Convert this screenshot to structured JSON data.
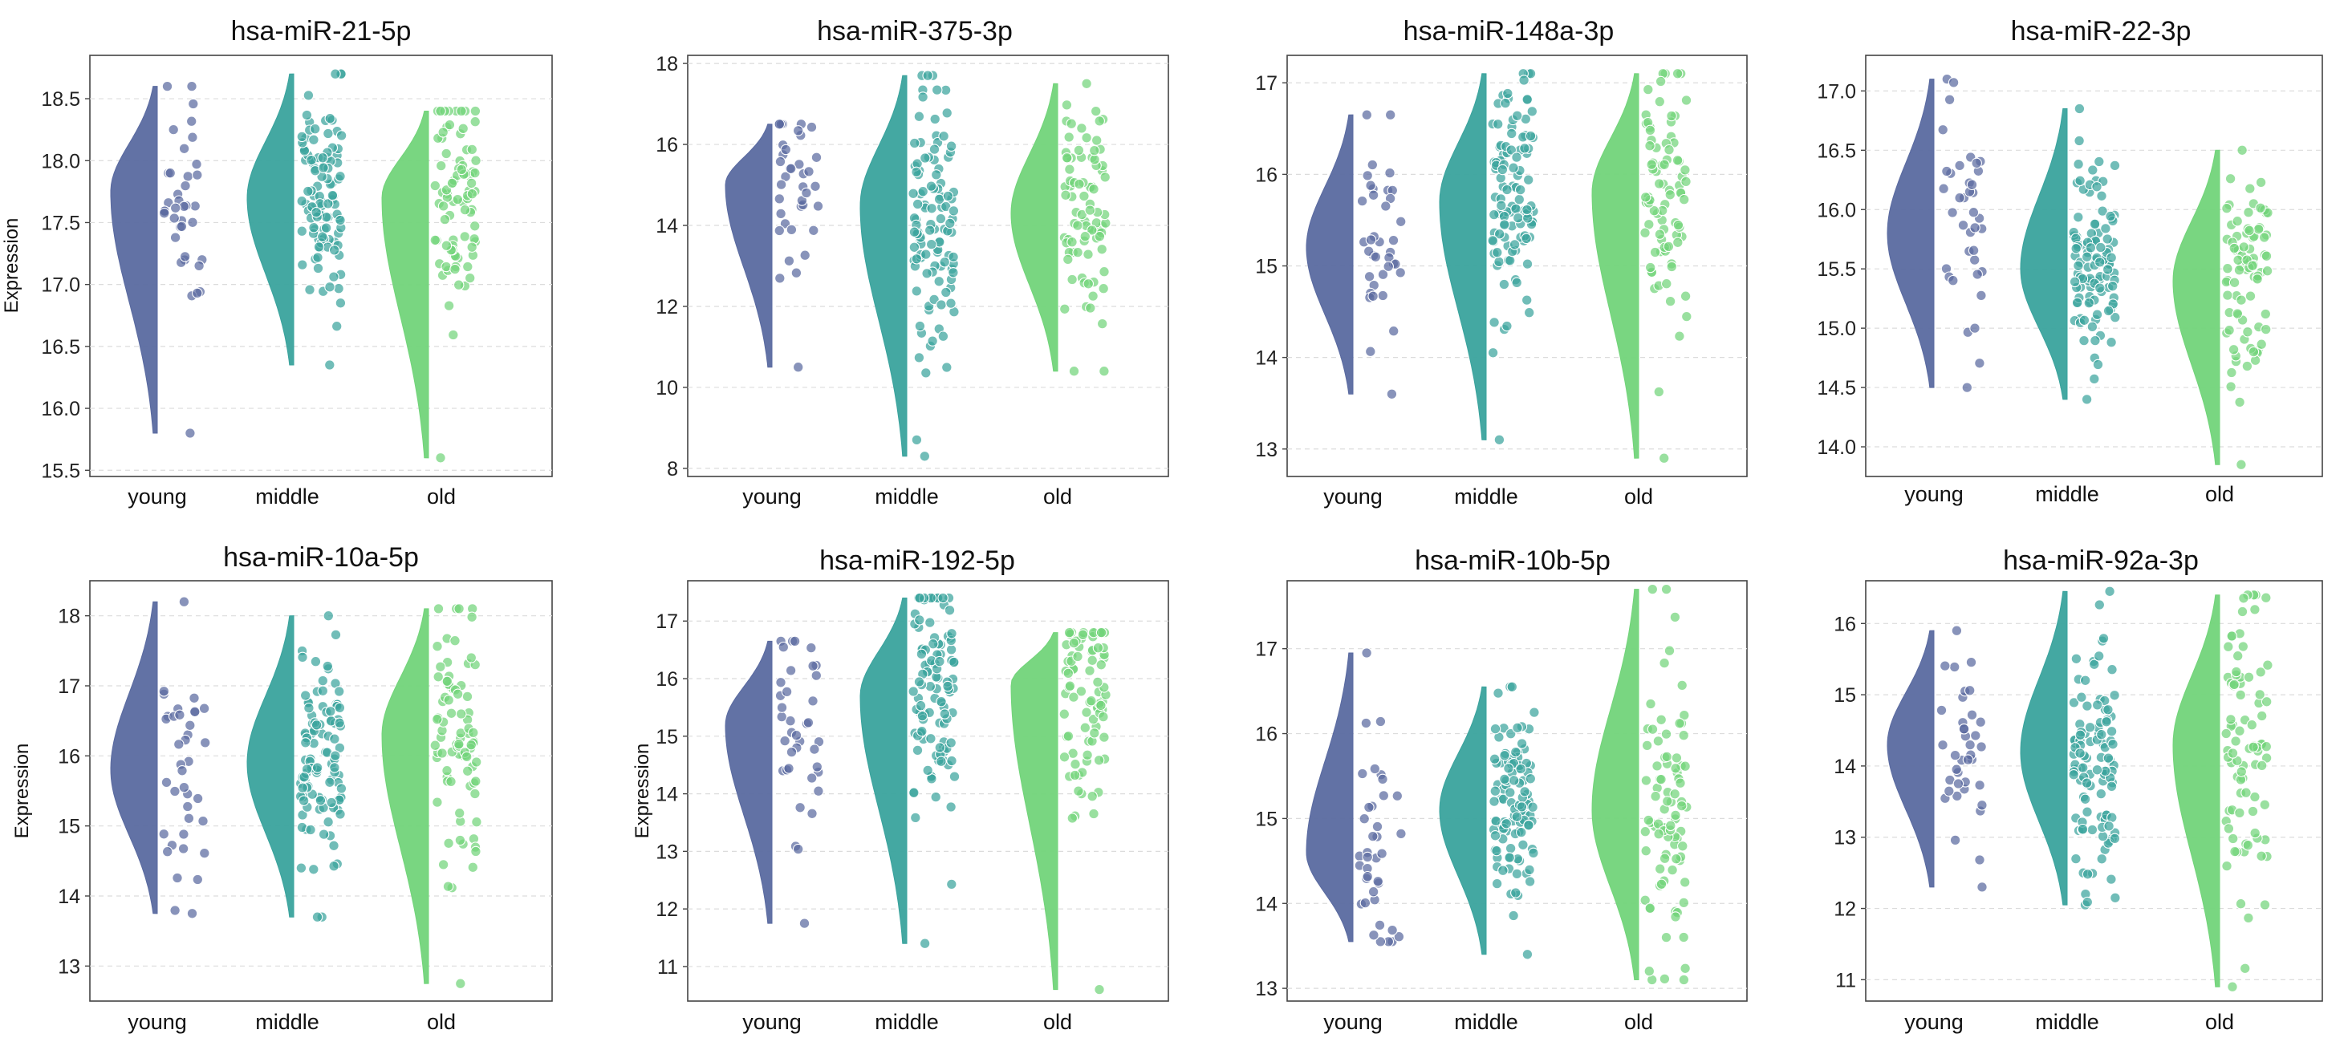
{
  "chart_data": {
    "type": "raincloud",
    "ylabel": "Expression",
    "categories": [
      "young",
      "middle",
      "old"
    ],
    "colors": {
      "young": "#5a6aa0",
      "middle": "#3aa39d",
      "old": "#72d47a"
    },
    "panels": [
      {
        "title": "hsa-miR-21-5p",
        "ylim": [
          15.45,
          18.85
        ],
        "yticks": [
          "15.5",
          "16.0",
          "16.5",
          "17.0",
          "17.5",
          "18.0",
          "18.5"
        ],
        "ylabel_shown": true,
        "groups": [
          {
            "min": 15.8,
            "max": 18.6,
            "mode": 17.75,
            "n": 38,
            "range": [
              15.8,
              18.6
            ]
          },
          {
            "min": 16.35,
            "max": 18.7,
            "mode": 17.7,
            "n": 110,
            "range": [
              16.35,
              18.7
            ]
          },
          {
            "min": 15.6,
            "max": 18.4,
            "mode": 17.7,
            "n": 85,
            "range": [
              15.6,
              18.4
            ]
          }
        ]
      },
      {
        "title": "hsa-miR-375-3p",
        "ylim": [
          7.8,
          18.2
        ],
        "yticks": [
          "8",
          "10",
          "12",
          "14",
          "16",
          "18"
        ],
        "ylabel_shown": false,
        "groups": [
          {
            "min": 10.5,
            "max": 16.5,
            "mode": 15.0,
            "n": 38,
            "range": [
              10.5,
              16.5
            ]
          },
          {
            "min": 8.3,
            "max": 17.7,
            "mode": 14.5,
            "n": 110,
            "range": [
              8.3,
              17.7
            ]
          },
          {
            "min": 10.4,
            "max": 17.5,
            "mode": 14.3,
            "n": 85,
            "range": [
              10.4,
              17.5
            ]
          }
        ]
      },
      {
        "title": "hsa-miR-148a-3p",
        "ylim": [
          12.7,
          17.3
        ],
        "yticks": [
          "13",
          "14",
          "15",
          "16",
          "17"
        ],
        "ylabel_shown": false,
        "groups": [
          {
            "min": 13.6,
            "max": 16.65,
            "mode": 15.2,
            "n": 38,
            "range": [
              13.6,
              16.65
            ]
          },
          {
            "min": 13.1,
            "max": 17.1,
            "mode": 15.7,
            "n": 110,
            "range": [
              13.1,
              17.1
            ]
          },
          {
            "min": 12.9,
            "max": 17.1,
            "mode": 15.8,
            "n": 85,
            "range": [
              12.9,
              17.1
            ]
          }
        ]
      },
      {
        "title": "hsa-miR-22-3p",
        "ylim": [
          13.75,
          17.3
        ],
        "yticks": [
          "14.0",
          "14.5",
          "15.0",
          "15.5",
          "16.0",
          "16.5",
          "17.0"
        ],
        "ylabel_shown": false,
        "groups": [
          {
            "min": 14.5,
            "max": 17.1,
            "mode": 15.8,
            "n": 38,
            "range": [
              14.5,
              17.1
            ]
          },
          {
            "min": 14.4,
            "max": 16.85,
            "mode": 15.5,
            "n": 110,
            "range": [
              14.4,
              16.85
            ]
          },
          {
            "min": 13.85,
            "max": 16.5,
            "mode": 15.4,
            "n": 85,
            "range": [
              13.85,
              16.5
            ]
          }
        ]
      },
      {
        "title": "hsa-miR-10a-5p",
        "ylim": [
          12.5,
          18.5
        ],
        "yticks": [
          "13",
          "14",
          "15",
          "16",
          "17",
          "18"
        ],
        "ylabel_shown": true,
        "groups": [
          {
            "min": 13.75,
            "max": 18.2,
            "mode": 15.8,
            "n": 38,
            "range": [
              13.75,
              18.2
            ]
          },
          {
            "min": 13.7,
            "max": 18.0,
            "mode": 15.9,
            "n": 110,
            "range": [
              13.7,
              18.0
            ]
          },
          {
            "min": 12.75,
            "max": 18.1,
            "mode": 16.3,
            "n": 85,
            "range": [
              12.75,
              18.1
            ]
          }
        ]
      },
      {
        "title": "hsa-miR-192-5p",
        "ylim": [
          10.4,
          17.7
        ],
        "yticks": [
          "11",
          "12",
          "13",
          "14",
          "15",
          "16",
          "17"
        ],
        "ylabel_shown": true,
        "groups": [
          {
            "min": 11.75,
            "max": 16.65,
            "mode": 15.2,
            "n": 38,
            "range": [
              11.75,
              16.65
            ]
          },
          {
            "min": 11.4,
            "max": 17.4,
            "mode": 15.7,
            "n": 110,
            "range": [
              11.4,
              17.4
            ]
          },
          {
            "min": 10.6,
            "max": 16.8,
            "mode": 15.9,
            "n": 85,
            "range": [
              10.6,
              16.8
            ]
          }
        ]
      },
      {
        "title": "hsa-miR-10b-5p",
        "ylim": [
          12.85,
          17.8
        ],
        "yticks": [
          "13",
          "14",
          "15",
          "16",
          "17"
        ],
        "ylabel_shown": false,
        "groups": [
          {
            "min": 13.55,
            "max": 16.95,
            "mode": 14.6,
            "n": 38,
            "range": [
              13.55,
              16.95
            ]
          },
          {
            "min": 13.4,
            "max": 16.55,
            "mode": 15.1,
            "n": 110,
            "range": [
              13.4,
              16.55
            ]
          },
          {
            "min": 13.1,
            "max": 17.7,
            "mode": 15.1,
            "n": 85,
            "range": [
              13.1,
              17.7
            ]
          }
        ]
      },
      {
        "title": "hsa-miR-92a-3p",
        "ylim": [
          10.7,
          16.6
        ],
        "yticks": [
          "11",
          "12",
          "13",
          "14",
          "15",
          "16"
        ],
        "ylabel_shown": false,
        "groups": [
          {
            "min": 12.3,
            "max": 15.9,
            "mode": 14.3,
            "n": 38,
            "range": [
              12.3,
              15.9
            ]
          },
          {
            "min": 12.05,
            "max": 16.45,
            "mode": 14.2,
            "n": 110,
            "range": [
              12.05,
              16.45
            ]
          },
          {
            "min": 10.9,
            "max": 16.4,
            "mode": 14.3,
            "n": 85,
            "range": [
              10.9,
              16.4
            ]
          }
        ]
      }
    ]
  }
}
